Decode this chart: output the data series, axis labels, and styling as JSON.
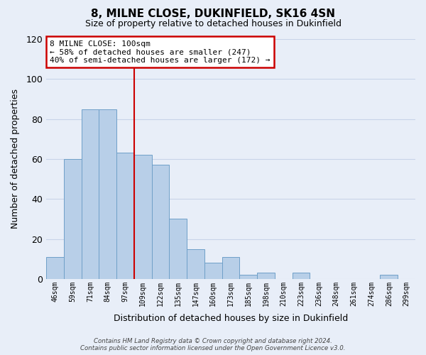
{
  "title": "8, MILNE CLOSE, DUKINFIELD, SK16 4SN",
  "subtitle": "Size of property relative to detached houses in Dukinfield",
  "xlabel": "Distribution of detached houses by size in Dukinfield",
  "ylabel": "Number of detached properties",
  "categories": [
    "46sqm",
    "59sqm",
    "71sqm",
    "84sqm",
    "97sqm",
    "109sqm",
    "122sqm",
    "135sqm",
    "147sqm",
    "160sqm",
    "173sqm",
    "185sqm",
    "198sqm",
    "210sqm",
    "223sqm",
    "236sqm",
    "248sqm",
    "261sqm",
    "274sqm",
    "286sqm",
    "299sqm"
  ],
  "values": [
    11,
    60,
    85,
    85,
    63,
    62,
    57,
    30,
    15,
    8,
    11,
    2,
    3,
    0,
    3,
    0,
    0,
    0,
    0,
    2,
    0
  ],
  "bar_color": "#b8cfe8",
  "bar_edge_color": "#6fa0c8",
  "vline_bar_index": 4,
  "vline_color": "#cc0000",
  "ylim": [
    0,
    120
  ],
  "yticks": [
    0,
    20,
    40,
    60,
    80,
    100,
    120
  ],
  "annotation_text": "8 MILNE CLOSE: 100sqm\n← 58% of detached houses are smaller (247)\n40% of semi-detached houses are larger (172) →",
  "annotation_box_color": "#ffffff",
  "annotation_box_edge": "#cc0000",
  "footer_line1": "Contains HM Land Registry data © Crown copyright and database right 2024.",
  "footer_line2": "Contains public sector information licensed under the Open Government Licence v3.0.",
  "background_color": "#e8eef8",
  "plot_bg_color": "#e8eef8",
  "grid_color": "#c8d4e8"
}
